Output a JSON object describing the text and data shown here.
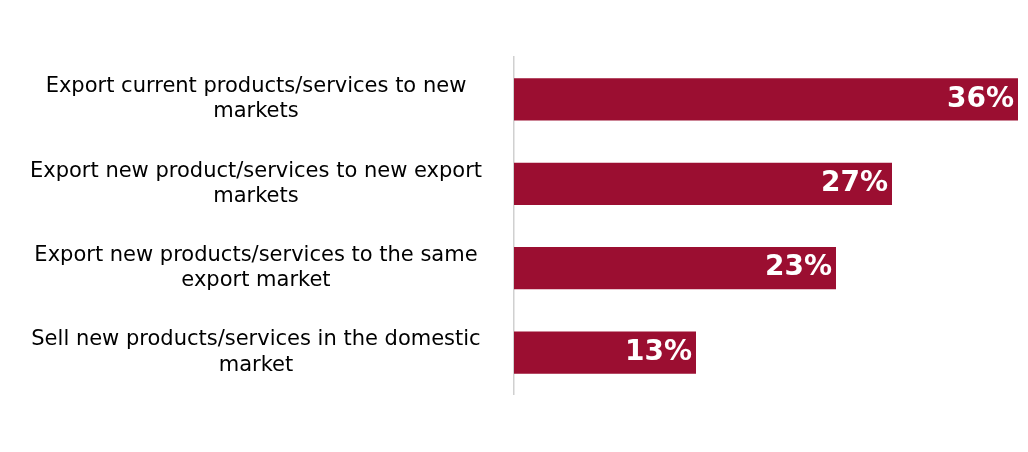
{
  "chart_data": {
    "type": "bar",
    "orientation": "horizontal",
    "categories": [
      "Export current products/services to new markets",
      "Export new product/services to new export markets",
      "Export new products/services to the same export market",
      "Sell new products/services in the domestic market"
    ],
    "values": [
      36,
      27,
      23,
      13
    ],
    "value_labels": [
      "36%",
      "27%",
      "23%",
      "13%"
    ],
    "color": "#9b0e31",
    "xlim": [
      0,
      36
    ],
    "tick_labels": "y",
    "grid": false,
    "legend": false
  }
}
